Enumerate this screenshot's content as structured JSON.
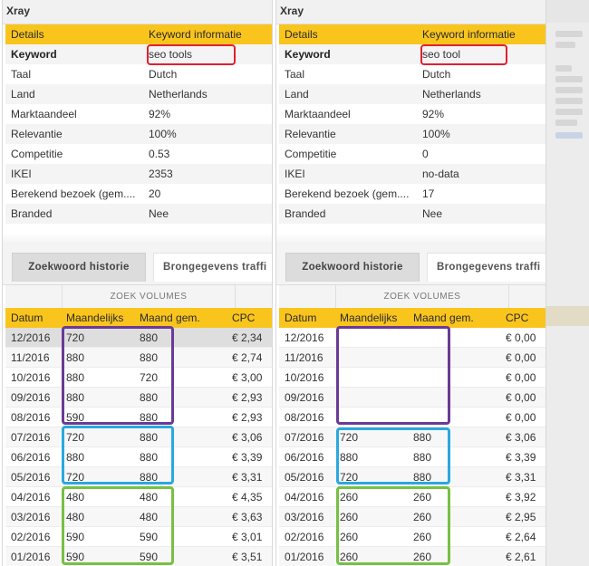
{
  "panels": [
    {
      "title": "Xray",
      "info_header": [
        "Details",
        "Keyword informatie"
      ],
      "info_rows": [
        [
          "Keyword",
          "seo tools"
        ],
        [
          "Taal",
          "Dutch"
        ],
        [
          "Land",
          "Netherlands"
        ],
        [
          "Marktaandeel",
          "92%"
        ],
        [
          "Relevantie",
          "100%"
        ],
        [
          "Competitie",
          "0.53"
        ],
        [
          "IKEI",
          "2353"
        ],
        [
          "Berekend bezoek (gem....",
          "20"
        ],
        [
          "Branded",
          "Nee"
        ]
      ],
      "tabs": [
        "Zoekwoord historie",
        "Brongegevens traffi"
      ],
      "group_label": "ZOEK VOLUMES",
      "grid_header": [
        "Datum",
        "Maandelijks",
        "Maand gem.",
        "CPC"
      ],
      "rows": [
        [
          "12/2016",
          "720",
          "880",
          "€ 2,34"
        ],
        [
          "11/2016",
          "880",
          "880",
          "€ 2,74"
        ],
        [
          "10/2016",
          "880",
          "720",
          "€ 3,00"
        ],
        [
          "09/2016",
          "880",
          "880",
          "€ 2,93"
        ],
        [
          "08/2016",
          "590",
          "880",
          "€ 2,93"
        ],
        [
          "07/2016",
          "720",
          "880",
          "€ 3,06"
        ],
        [
          "06/2016",
          "880",
          "880",
          "€ 3,39"
        ],
        [
          "05/2016",
          "720",
          "880",
          "€ 3,31"
        ],
        [
          "04/2016",
          "480",
          "480",
          "€ 4,35"
        ],
        [
          "03/2016",
          "480",
          "480",
          "€ 3,63"
        ],
        [
          "02/2016",
          "590",
          "590",
          "€ 3,01"
        ],
        [
          "01/2016",
          "590",
          "590",
          "€ 3,51"
        ]
      ]
    },
    {
      "title": "Xray",
      "info_header": [
        "Details",
        "Keyword informatie"
      ],
      "info_rows": [
        [
          "Keyword",
          "seo tool"
        ],
        [
          "Taal",
          "Dutch"
        ],
        [
          "Land",
          "Netherlands"
        ],
        [
          "Marktaandeel",
          "92%"
        ],
        [
          "Relevantie",
          "100%"
        ],
        [
          "Competitie",
          "0"
        ],
        [
          "IKEI",
          "no-data"
        ],
        [
          "Berekend bezoek (gem....",
          "17"
        ],
        [
          "Branded",
          "Nee"
        ]
      ],
      "tabs": [
        "Zoekwoord historie",
        "Brongegevens traffi"
      ],
      "group_label": "ZOEK VOLUMES",
      "grid_header": [
        "Datum",
        "Maandelijks",
        "Maand gem.",
        "CPC"
      ],
      "rows": [
        [
          "12/2016",
          "",
          "",
          "€ 0,00"
        ],
        [
          "11/2016",
          "",
          "",
          "€ 0,00"
        ],
        [
          "10/2016",
          "",
          "",
          "€ 0,00"
        ],
        [
          "09/2016",
          "",
          "",
          "€ 0,00"
        ],
        [
          "08/2016",
          "",
          "",
          "€ 0,00"
        ],
        [
          "07/2016",
          "720",
          "880",
          "€ 3,06"
        ],
        [
          "06/2016",
          "880",
          "880",
          "€ 3,39"
        ],
        [
          "05/2016",
          "720",
          "880",
          "€ 3,31"
        ],
        [
          "04/2016",
          "260",
          "260",
          "€ 3,92"
        ],
        [
          "03/2016",
          "260",
          "260",
          "€ 2,95"
        ],
        [
          "02/2016",
          "260",
          "260",
          "€ 2,64"
        ],
        [
          "01/2016",
          "260",
          "260",
          "€ 2,61"
        ]
      ]
    }
  ],
  "colors": {
    "header_yellow": "#f9c51d",
    "keyword_highlight": "#e02030",
    "group_purple": "#6a3a96",
    "group_blue": "#2aa8e0",
    "group_green": "#77c043"
  }
}
